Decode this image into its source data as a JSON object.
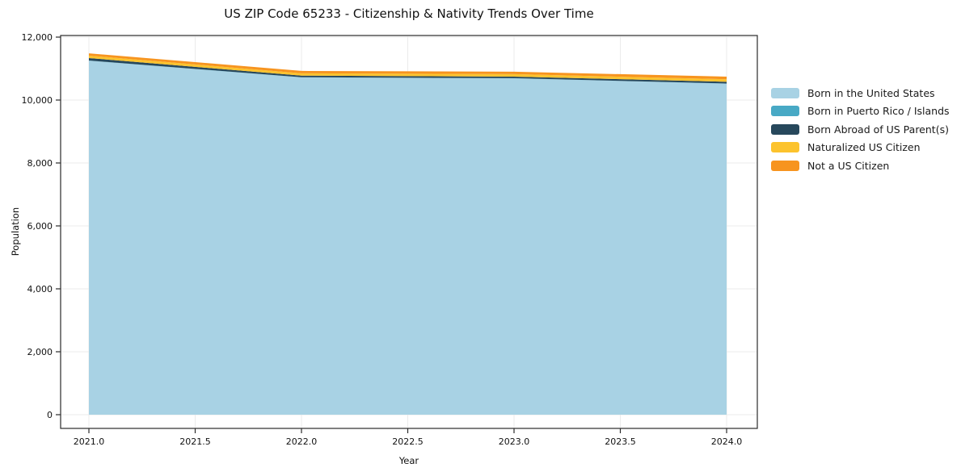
{
  "chart_data": {
    "type": "area",
    "stacked": true,
    "title": "US ZIP Code 65233 - Citizenship & Nativity Trends Over Time",
    "xlabel": "Year",
    "ylabel": "Population",
    "x": [
      2021,
      2022,
      2023,
      2024
    ],
    "series": [
      {
        "name": "Born in the United States",
        "color": "#a8d2e4",
        "values": [
          11250,
          10720,
          10690,
          10520
        ]
      },
      {
        "name": "Born in Puerto Rico / Islands",
        "color": "#48a9c5",
        "values": [
          5,
          5,
          5,
          5
        ]
      },
      {
        "name": "Born Abroad of US Parent(s)",
        "color": "#27485c",
        "values": [
          80,
          50,
          50,
          55
        ]
      },
      {
        "name": "Naturalized US Citizen",
        "color": "#fcc32d",
        "values": [
          75,
          75,
          78,
          80
        ]
      },
      {
        "name": "Not a US Citizen",
        "color": "#f7941f",
        "values": [
          75,
          75,
          77,
          85
        ]
      }
    ],
    "x_ticks": [
      {
        "value": 2021.0,
        "label": "2021.0"
      },
      {
        "value": 2021.5,
        "label": "2021.5"
      },
      {
        "value": 2022.0,
        "label": "2022.0"
      },
      {
        "value": 2022.5,
        "label": "2022.5"
      },
      {
        "value": 2023.0,
        "label": "2023.0"
      },
      {
        "value": 2023.5,
        "label": "2023.5"
      },
      {
        "value": 2024.0,
        "label": "2024.0"
      }
    ],
    "y_ticks": [
      {
        "value": 0,
        "label": "0"
      },
      {
        "value": 2000,
        "label": "2,000"
      },
      {
        "value": 4000,
        "label": "4,000"
      },
      {
        "value": 6000,
        "label": "6,000"
      },
      {
        "value": 8000,
        "label": "8,000"
      },
      {
        "value": 10000,
        "label": "10,000"
      },
      {
        "value": 12000,
        "label": "12,000"
      }
    ],
    "xlim": [
      2020.867,
      2024.144
    ],
    "ylim": [
      -436,
      12051
    ],
    "grid": true,
    "grid_color": "#ebebeb",
    "spine_color": "#2a2a2a",
    "legend_position": "right-outside"
  }
}
